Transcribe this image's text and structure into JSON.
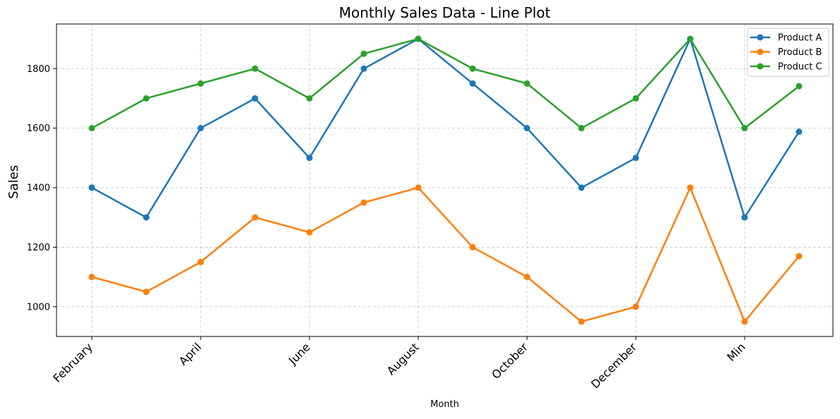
{
  "chart_data": {
    "type": "line",
    "title": "Monthly Sales Data - Line Plot",
    "xlabel": "Month",
    "ylabel": "Sales",
    "x_tick_labels": [
      "February",
      "April",
      "June",
      "August",
      "October",
      "December",
      "Min"
    ],
    "y_ticks": [
      1000,
      1200,
      1400,
      1600,
      1800
    ],
    "ylim": [
      900,
      1950
    ],
    "grid": true,
    "legend_position": "top-right",
    "series": [
      {
        "name": "Product A",
        "color": "#1f77b4",
        "values": [
          1400,
          1300,
          1600,
          1700,
          1500,
          1800,
          1900,
          1750,
          1600,
          1400,
          1500,
          1900,
          1300,
          1588
        ]
      },
      {
        "name": "Product B",
        "color": "#ff7f0e",
        "values": [
          1100,
          1050,
          1150,
          1300,
          1250,
          1350,
          1400,
          1200,
          1100,
          950,
          1000,
          1400,
          950,
          1170
        ]
      },
      {
        "name": "Product C",
        "color": "#2ca02c",
        "values": [
          1600,
          1700,
          1750,
          1800,
          1700,
          1850,
          1900,
          1800,
          1750,
          1600,
          1700,
          1900,
          1600,
          1741
        ]
      }
    ]
  }
}
